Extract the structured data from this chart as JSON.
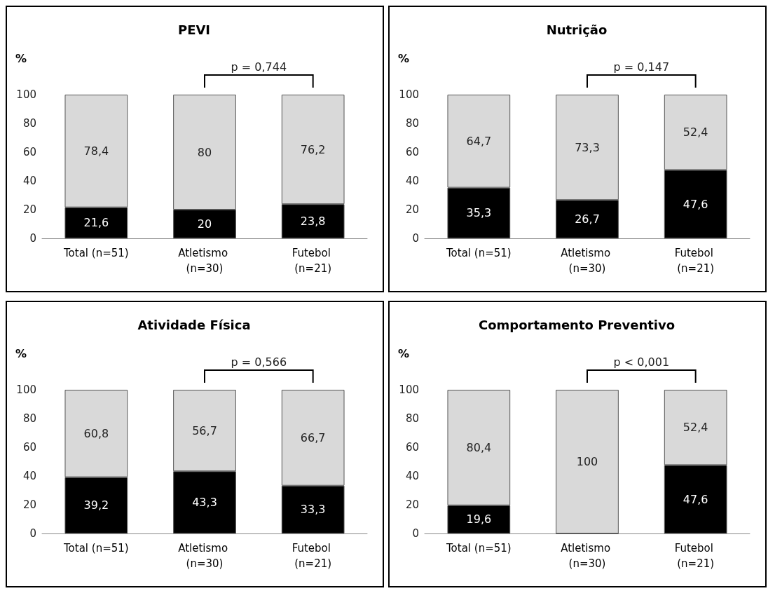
{
  "chart_data": [
    {
      "type": "bar",
      "title": "PEVI",
      "ylabel": "%",
      "stacked": true,
      "grid": false,
      "ylim": [
        0,
        100
      ],
      "yticks": [
        0,
        20,
        40,
        60,
        80,
        100
      ],
      "annotations": [
        "p = 0,744"
      ],
      "categories": [
        "Total (n=51)",
        "Atletismo (n=30)",
        "Futebol (n=21)"
      ],
      "series": [
        {
          "color": "#000000",
          "values": [
            21.6,
            20,
            23.8
          ],
          "value_labels": [
            "21,6",
            "20",
            "23,8"
          ]
        },
        {
          "color": "#d9d9d9",
          "values": [
            78.4,
            80,
            76.2
          ],
          "value_labels": [
            "78,4",
            "80",
            "76,2"
          ]
        }
      ]
    },
    {
      "type": "bar",
      "title": "Nutrição",
      "ylabel": "%",
      "stacked": true,
      "grid": false,
      "ylim": [
        0,
        100
      ],
      "yticks": [
        0,
        20,
        40,
        60,
        80,
        100
      ],
      "annotations": [
        "p = 0,147"
      ],
      "categories": [
        "Total (n=51)",
        "Atletismo (n=30)",
        "Futebol (n=21)"
      ],
      "series": [
        {
          "color": "#000000",
          "values": [
            35.3,
            26.7,
            47.6
          ],
          "value_labels": [
            "35,3",
            "26,7",
            "47,6"
          ]
        },
        {
          "color": "#d9d9d9",
          "values": [
            64.7,
            73.3,
            52.4
          ],
          "value_labels": [
            "64,7",
            "73,3",
            "52,4"
          ]
        }
      ]
    },
    {
      "type": "bar",
      "title": "Atividade Física",
      "ylabel": "%",
      "stacked": true,
      "grid": false,
      "ylim": [
        0,
        100
      ],
      "yticks": [
        0,
        20,
        40,
        60,
        80,
        100
      ],
      "annotations": [
        "p = 0,566"
      ],
      "categories": [
        "Total (n=51)",
        "Atletismo (n=30)",
        "Futebol (n=21)"
      ],
      "series": [
        {
          "color": "#000000",
          "values": [
            39.2,
            43.3,
            33.3
          ],
          "value_labels": [
            "39,2",
            "43,3",
            "33,3"
          ]
        },
        {
          "color": "#d9d9d9",
          "values": [
            60.8,
            56.7,
            66.7
          ],
          "value_labels": [
            "60,8",
            "56,7",
            "66,7"
          ]
        }
      ]
    },
    {
      "type": "bar",
      "title": "Comportamento Preventivo",
      "ylabel": "%",
      "stacked": true,
      "grid": false,
      "ylim": [
        0,
        100
      ],
      "yticks": [
        0,
        20,
        40,
        60,
        80,
        100
      ],
      "annotations": [
        "p < 0,001"
      ],
      "categories": [
        "Total (n=51)",
        "Atletismo (n=30)",
        "Futebol (n=21)"
      ],
      "series": [
        {
          "color": "#000000",
          "values": [
            19.6,
            0,
            47.6
          ],
          "value_labels": [
            "19,6",
            null,
            "47,6"
          ]
        },
        {
          "color": "#d9d9d9",
          "values": [
            80.4,
            100,
            52.4
          ],
          "value_labels": [
            "80,4",
            "100",
            "52,4"
          ]
        }
      ]
    }
  ]
}
